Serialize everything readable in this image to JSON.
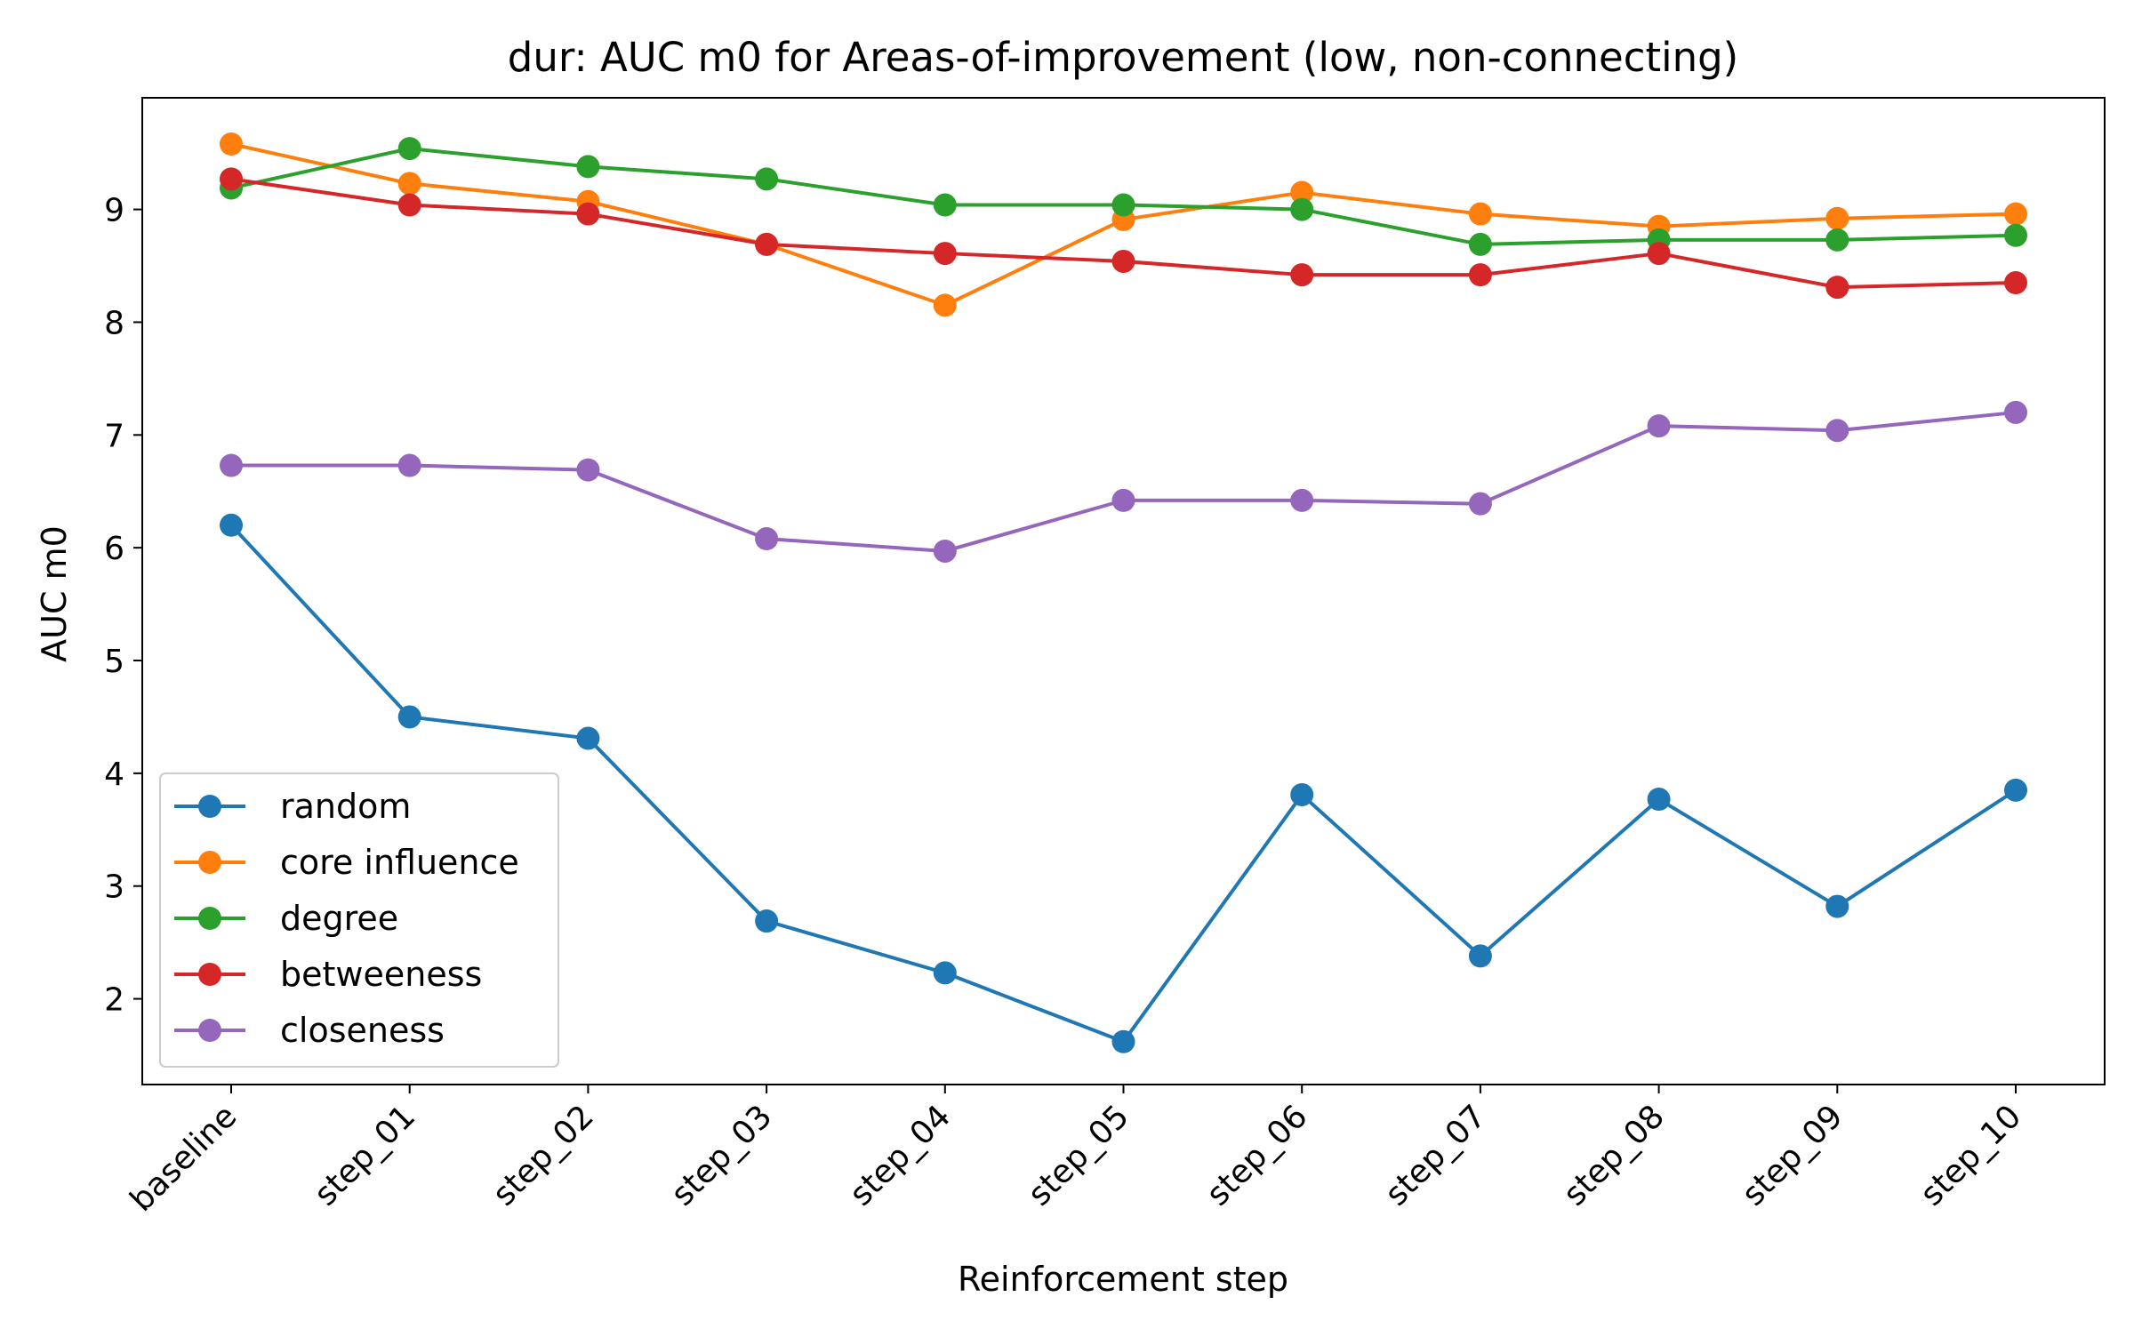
{
  "chart_data": {
    "type": "line",
    "title": "dur: AUC m0 for Areas-of-improvement (low, non-connecting)",
    "xlabel": "Reinforcement step",
    "ylabel": "AUC m0",
    "categories": [
      "baseline",
      "step_01",
      "step_02",
      "step_03",
      "step_04",
      "step_05",
      "step_06",
      "step_07",
      "step_08",
      "step_09",
      "step_10"
    ],
    "ylim": [
      1.24,
      9.99
    ],
    "yticks": [
      "2",
      "3",
      "4",
      "5",
      "6",
      "7",
      "8",
      "9"
    ],
    "grid": false,
    "legend_position": "lower-left",
    "series": [
      {
        "name": "random",
        "color": "#1f77b4",
        "marker": "circle",
        "values": [
          6.2,
          4.5,
          4.31,
          2.69,
          2.23,
          1.62,
          3.81,
          2.38,
          3.77,
          2.82,
          3.85
        ]
      },
      {
        "name": "core influence",
        "color": "#ff7f0e",
        "marker": "circle",
        "values": [
          9.58,
          9.23,
          9.07,
          8.69,
          8.15,
          8.91,
          9.15,
          8.96,
          8.85,
          8.92,
          8.96
        ]
      },
      {
        "name": "degree",
        "color": "#2ca02c",
        "marker": "circle",
        "values": [
          9.19,
          9.54,
          9.38,
          9.27,
          9.04,
          9.04,
          9.0,
          8.69,
          8.73,
          8.73,
          8.77
        ]
      },
      {
        "name": "betweeness",
        "color": "#d62728",
        "marker": "circle",
        "values": [
          9.27,
          9.04,
          8.96,
          8.69,
          8.61,
          8.54,
          8.42,
          8.42,
          8.61,
          8.31,
          8.35
        ]
      },
      {
        "name": "closeness",
        "color": "#9467bd",
        "marker": "circle",
        "values": [
          6.73,
          6.73,
          6.69,
          6.08,
          5.97,
          6.42,
          6.42,
          6.39,
          7.08,
          7.04,
          7.2
        ]
      }
    ]
  }
}
